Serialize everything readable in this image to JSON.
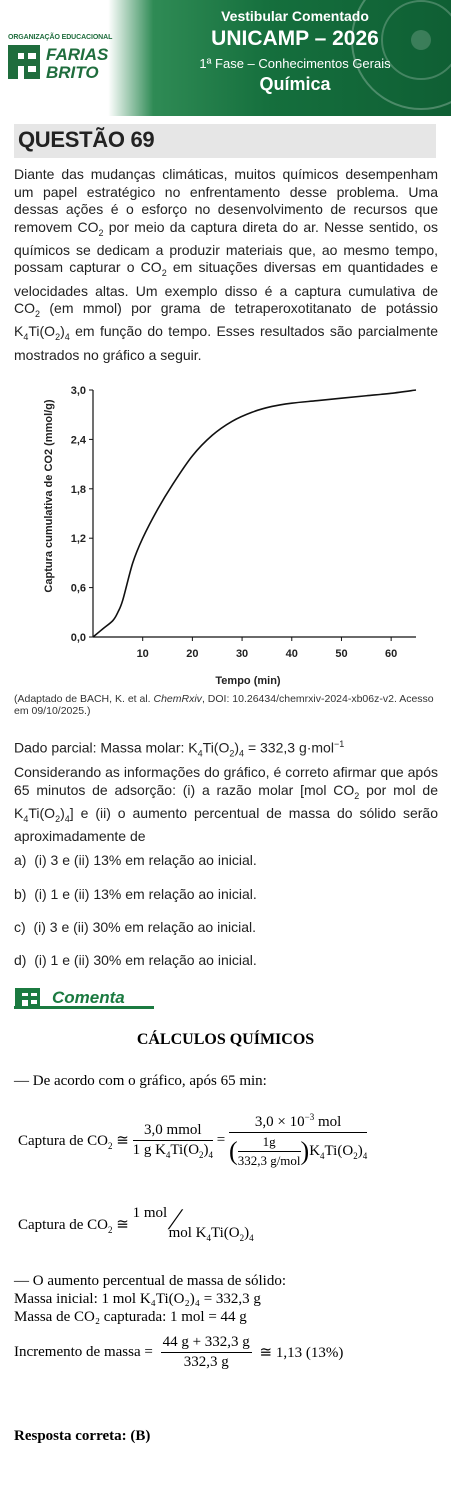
{
  "header": {
    "org_label": "ORGANIZAÇÃO EDUCACIONAL",
    "logo_text": [
      "FARIAS",
      "BRITO"
    ],
    "line1": "Vestibular Comentado",
    "line2": "UNICAMP – 2026",
    "line3": "1ª Fase – Conhecimentos Gerais",
    "line4": "Química"
  },
  "question": {
    "title": "QUESTÃO 69",
    "source": "(Adaptado de BACH, K. et al. ChemRxiv, DOI: 10.26434/chemrxiv-2024-xb06z-v2. Acesso em 09/10/2025.)",
    "given": "Dado parcial: Massa molar: K4Ti(O2)4 = 332,3 g·mol−1",
    "options": [
      {
        "letter": "a)",
        "text": "(i) 3 e (ii) 13% em relação ao inicial."
      },
      {
        "letter": "b)",
        "text": "(i) 1 e (ii) 13% em relação ao inicial."
      },
      {
        "letter": "c)",
        "text": "(i) 3 e (ii) 30% em relação ao inicial."
      },
      {
        "letter": "d)",
        "text": "(i) 1 e (ii) 30% em relação ao inicial."
      }
    ]
  },
  "chart_data": {
    "type": "line",
    "ylabel": "Captura cumulativa de CO2 (mmol/g)",
    "xlabel": "Tempo (min)",
    "xlim": [
      0,
      65
    ],
    "ylim": [
      0,
      3.0
    ],
    "x_ticks": [
      "10",
      "20",
      "30",
      "40",
      "50",
      "60"
    ],
    "y_ticks": [
      "0,0",
      "0,6",
      "1,2",
      "1,8",
      "2,4",
      "3,0"
    ],
    "x": [
      0,
      2,
      4,
      5,
      6,
      8,
      10,
      13,
      16,
      20,
      24,
      28,
      32,
      36,
      40,
      45,
      50,
      55,
      60,
      65
    ],
    "y": [
      0.0,
      0.1,
      0.2,
      0.3,
      0.45,
      0.9,
      1.2,
      1.55,
      1.85,
      2.2,
      2.45,
      2.62,
      2.73,
      2.8,
      2.84,
      2.87,
      2.9,
      2.93,
      2.96,
      3.0
    ]
  },
  "comenta": {
    "label": "Comenta",
    "section_title": "CÁLCULOS QUÍMICOS",
    "intro": "— De acordo com o gráfico, após 65 min:",
    "increase_intro": "— O aumento percentual de massa de sólido:",
    "mass_initial": "Massa inicial: 1 mol K₄Ti(O₂)₄ = 332,3 g",
    "mass_co2": "Massa de CO₂ capturada: 1 mol = 44 g",
    "increment_label": "Incremento de massa =",
    "increment_num": "44 g + 332,3 g",
    "increment_den": "332,3 g",
    "increment_result": "≅ 1,13 (13%)",
    "answer": "Resposta correta: (B)"
  }
}
